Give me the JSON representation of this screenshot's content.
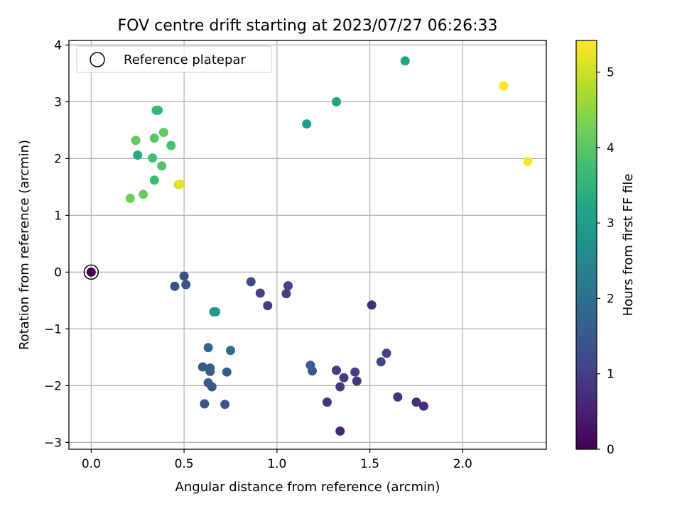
{
  "chart_data": {
    "type": "scatter",
    "title": "FOV centre drift starting at 2023/07/27 06:26:33",
    "xlabel": "Angular distance from reference (arcmin)",
    "ylabel": "Rotation from reference (arcmin)",
    "xlim": [
      -0.12,
      2.45
    ],
    "ylim": [
      -3.12,
      4.08
    ],
    "xticks": [
      0.0,
      0.5,
      1.0,
      1.5,
      2.0
    ],
    "xtick_labels": [
      "0.0",
      "0.5",
      "1.0",
      "1.5",
      "2.0"
    ],
    "yticks": [
      -3,
      -2,
      -1,
      0,
      1,
      2,
      3,
      4
    ],
    "ytick_labels": [
      "−3",
      "−2",
      "−1",
      "0",
      "1",
      "2",
      "3",
      "4"
    ],
    "grid": true,
    "legend": {
      "position": "top-left",
      "entries": [
        "Reference platepar"
      ]
    },
    "colorbar": {
      "label": "Hours from first FF file",
      "range": [
        0,
        5.42
      ],
      "ticks": [
        0,
        1,
        2,
        3,
        4,
        5
      ],
      "tick_labels": [
        "0",
        "1",
        "2",
        "3",
        "4",
        "5"
      ],
      "colormap": "viridis"
    },
    "reference_point": {
      "x": 0.0,
      "y": 0.0
    },
    "points": [
      {
        "x": 0.0,
        "y": 0.0,
        "hours": 0.0
      },
      {
        "x": 1.34,
        "y": -2.8,
        "hours": 0.6
      },
      {
        "x": 1.79,
        "y": -2.36,
        "hours": 0.7
      },
      {
        "x": 1.75,
        "y": -2.29,
        "hours": 0.75
      },
      {
        "x": 1.65,
        "y": -2.2,
        "hours": 0.8
      },
      {
        "x": 1.27,
        "y": -2.29,
        "hours": 0.8
      },
      {
        "x": 1.34,
        "y": -2.02,
        "hours": 0.9
      },
      {
        "x": 1.43,
        "y": -1.92,
        "hours": 0.9
      },
      {
        "x": 1.36,
        "y": -1.86,
        "hours": 0.95
      },
      {
        "x": 1.42,
        "y": -1.76,
        "hours": 1.0
      },
      {
        "x": 1.32,
        "y": -1.73,
        "hours": 1.0
      },
      {
        "x": 1.56,
        "y": -1.58,
        "hours": 1.05
      },
      {
        "x": 1.59,
        "y": -1.43,
        "hours": 1.05
      },
      {
        "x": 1.51,
        "y": -0.58,
        "hours": 0.7
      },
      {
        "x": 0.95,
        "y": -0.59,
        "hours": 0.95
      },
      {
        "x": 0.91,
        "y": -0.37,
        "hours": 1.1
      },
      {
        "x": 0.86,
        "y": -0.17,
        "hours": 1.2
      },
      {
        "x": 1.05,
        "y": -0.38,
        "hours": 1.0
      },
      {
        "x": 1.06,
        "y": -0.24,
        "hours": 1.1
      },
      {
        "x": 0.45,
        "y": -0.25,
        "hours": 1.4
      },
      {
        "x": 0.5,
        "y": -0.07,
        "hours": 1.3
      },
      {
        "x": 0.51,
        "y": -0.22,
        "hours": 1.4
      },
      {
        "x": 1.18,
        "y": -1.64,
        "hours": 1.6
      },
      {
        "x": 1.19,
        "y": -1.74,
        "hours": 1.5
      },
      {
        "x": 0.61,
        "y": -2.32,
        "hours": 1.4
      },
      {
        "x": 0.72,
        "y": -2.33,
        "hours": 1.4
      },
      {
        "x": 0.65,
        "y": -2.02,
        "hours": 1.5
      },
      {
        "x": 0.63,
        "y": -1.95,
        "hours": 1.5
      },
      {
        "x": 0.6,
        "y": -1.67,
        "hours": 1.5
      },
      {
        "x": 0.64,
        "y": -1.69,
        "hours": 1.6
      },
      {
        "x": 0.64,
        "y": -1.75,
        "hours": 1.6
      },
      {
        "x": 0.73,
        "y": -1.76,
        "hours": 1.6
      },
      {
        "x": 0.63,
        "y": -1.33,
        "hours": 1.8
      },
      {
        "x": 0.75,
        "y": -1.38,
        "hours": 1.9
      },
      {
        "x": 0.66,
        "y": -0.7,
        "hours": 2.8
      },
      {
        "x": 0.67,
        "y": -0.7,
        "hours": 2.9
      },
      {
        "x": 1.16,
        "y": 2.61,
        "hours": 3.0
      },
      {
        "x": 1.32,
        "y": 3.0,
        "hours": 3.1
      },
      {
        "x": 1.69,
        "y": 3.72,
        "hours": 3.2
      },
      {
        "x": 0.25,
        "y": 2.06,
        "hours": 3.3
      },
      {
        "x": 0.36,
        "y": 2.85,
        "hours": 3.5
      },
      {
        "x": 0.35,
        "y": 2.85,
        "hours": 3.6
      },
      {
        "x": 0.34,
        "y": 1.62,
        "hours": 3.7
      },
      {
        "x": 0.33,
        "y": 2.01,
        "hours": 3.8
      },
      {
        "x": 0.43,
        "y": 2.23,
        "hours": 3.8
      },
      {
        "x": 0.38,
        "y": 1.87,
        "hours": 3.9
      },
      {
        "x": 0.34,
        "y": 2.36,
        "hours": 4.0
      },
      {
        "x": 0.39,
        "y": 2.46,
        "hours": 4.1
      },
      {
        "x": 0.24,
        "y": 2.32,
        "hours": 4.1
      },
      {
        "x": 0.28,
        "y": 1.37,
        "hours": 4.2
      },
      {
        "x": 0.21,
        "y": 1.3,
        "hours": 4.2
      },
      {
        "x": 0.47,
        "y": 1.54,
        "hours": 5.0
      },
      {
        "x": 0.48,
        "y": 1.55,
        "hours": 5.2
      },
      {
        "x": 2.22,
        "y": 3.28,
        "hours": 5.4
      },
      {
        "x": 2.35,
        "y": 1.95,
        "hours": 5.4
      }
    ]
  }
}
